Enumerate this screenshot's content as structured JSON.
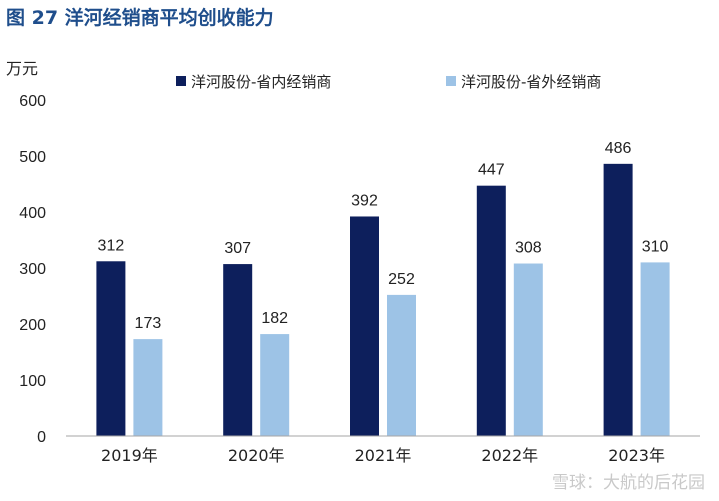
{
  "figure_title": "图 27 洋河经销商平均创收能力",
  "watermark": "雪球：大航的后花园",
  "colors": {
    "title": "#1f4e8c",
    "series_1": "#0d1f5c",
    "series_2": "#9dc3e6",
    "axis": "#a6a6a6",
    "text": "#222222"
  },
  "chart_data": {
    "type": "bar",
    "ylabel": "万元",
    "xlabel": "",
    "ylim": [
      0,
      600
    ],
    "yticks": [
      0,
      100,
      200,
      300,
      400,
      500,
      600
    ],
    "categories": [
      "2019年",
      "2020年",
      "2021年",
      "2022年",
      "2023年"
    ],
    "series": [
      {
        "name": "洋河股份-省内经销商",
        "values": [
          312,
          307,
          392,
          447,
          486
        ]
      },
      {
        "name": "洋河股份-省外经销商",
        "values": [
          173,
          182,
          252,
          308,
          310
        ]
      }
    ],
    "legend": "top",
    "grid": false,
    "data_labels": true
  }
}
